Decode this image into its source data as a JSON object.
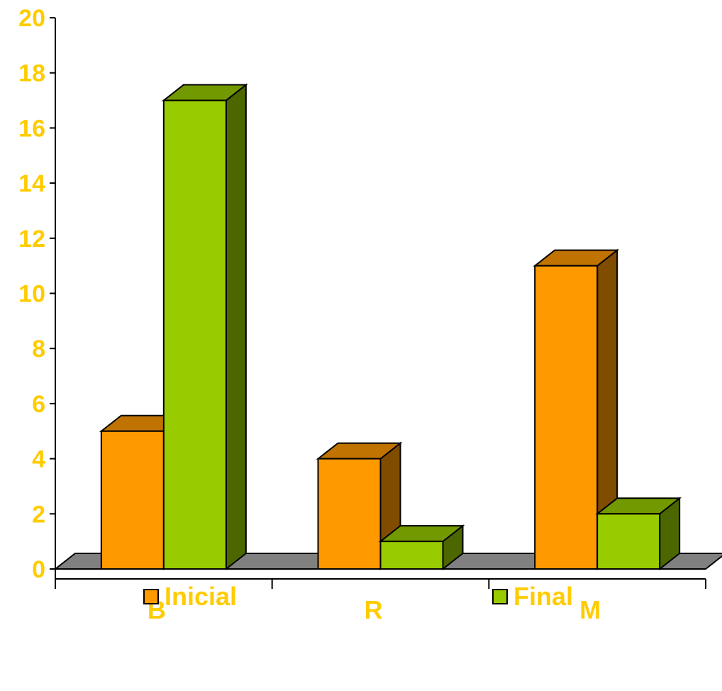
{
  "chart_data": {
    "type": "bar",
    "style": "3d-clustered",
    "categories": [
      "B",
      "R",
      "M"
    ],
    "series": [
      {
        "name": "Inicial",
        "values": [
          5,
          4,
          11
        ],
        "color": "#ff9900",
        "side_color": "#7f4c00",
        "top_color": "#c07300"
      },
      {
        "name": "Final",
        "values": [
          17,
          1,
          2
        ],
        "color": "#99cc00",
        "side_color": "#4c6600",
        "top_color": "#739900"
      }
    ],
    "ylim": [
      0,
      20
    ],
    "yticks": [
      0,
      2,
      4,
      6,
      8,
      10,
      12,
      14,
      16,
      18,
      20
    ],
    "grid": false,
    "legend_position": "bottom",
    "floor_color": "#808080",
    "label_color": "#ffcc00"
  }
}
